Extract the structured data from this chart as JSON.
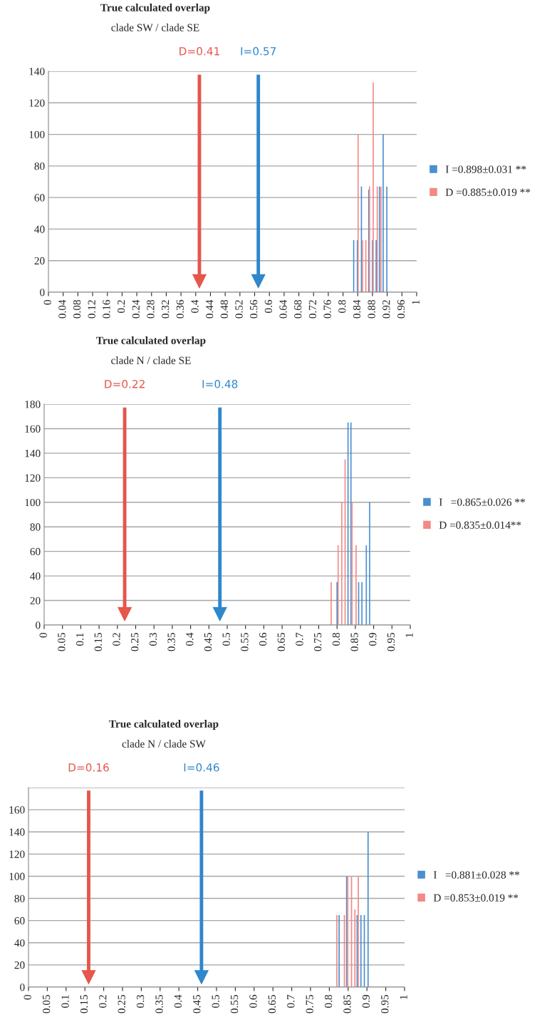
{
  "chart_data": [
    {
      "type": "bar",
      "title": "True calculated overlap",
      "subtitle": "clade SW / clade SE",
      "series": [
        {
          "name": "I =0.898±0.031 **",
          "color": "#4a8fd0",
          "x": [
            0.829,
            0.839,
            0.85,
            0.87,
            0.88,
            0.89,
            0.899,
            0.909,
            0.919
          ],
          "values": [
            33,
            33,
            67,
            65,
            33,
            33,
            67,
            100,
            67
          ]
        },
        {
          "name": "D =0.885±0.019 **",
          "color": "#f28a85",
          "x": [
            0.841,
            0.853,
            0.862,
            0.872,
            0.882,
            0.893,
            0.903
          ],
          "values": [
            100,
            33,
            33,
            67,
            133,
            67,
            67
          ]
        }
      ],
      "xlim": [
        0,
        1
      ],
      "xticks": [
        0,
        0.04,
        0.08,
        0.12,
        0.16,
        0.2,
        0.24,
        0.28,
        0.32,
        0.36,
        0.4,
        0.44,
        0.48,
        0.52,
        0.56,
        0.6,
        0.64,
        0.68,
        0.72,
        0.76,
        0.8,
        0.84,
        0.88,
        0.92,
        0.96,
        1
      ],
      "ylim": [
        0,
        140
      ],
      "yticks": [
        0,
        20,
        40,
        60,
        80,
        100,
        120,
        140
      ],
      "ref_lines": [
        {
          "axis": "x",
          "value": 0.41,
          "label": "D=0.41",
          "color": "#e5564b"
        },
        {
          "axis": "x",
          "value": 0.57,
          "label": "I=0.57",
          "color": "#2f87cc"
        }
      ],
      "grid": "y",
      "legend": "right"
    },
    {
      "type": "bar",
      "title": "True calculated overlap",
      "subtitle": "clade N / clade SE",
      "series": [
        {
          "name": "I   =0.865±0.026 **",
          "color": "#4a8fd0",
          "x": [
            0.8,
            0.83,
            0.838,
            0.859,
            0.868,
            0.88,
            0.889
          ],
          "values": [
            35,
            165,
            165,
            35,
            35,
            65,
            100
          ]
        },
        {
          "name": "D =0.835±0.014**",
          "color": "#f28a85",
          "x": [
            0.784,
            0.803,
            0.813,
            0.822,
            0.841,
            0.852
          ],
          "values": [
            35,
            65,
            100,
            135,
            100,
            65
          ]
        }
      ],
      "xlim": [
        0,
        1
      ],
      "xticks": [
        0,
        0.05,
        0.1,
        0.15,
        0.2,
        0.25,
        0.3,
        0.35,
        0.4,
        0.45,
        0.5,
        0.55,
        0.6,
        0.65,
        0.7,
        0.75,
        0.8,
        0.85,
        0.9,
        0.95,
        1
      ],
      "ylim": [
        0,
        180
      ],
      "yticks": [
        0,
        20,
        40,
        60,
        80,
        100,
        120,
        140,
        160,
        180
      ],
      "ref_lines": [
        {
          "axis": "x",
          "value": 0.22,
          "label": "D=0.22",
          "color": "#e5564b"
        },
        {
          "axis": "x",
          "value": 0.48,
          "label": "I=0.48",
          "color": "#2f87cc"
        }
      ],
      "grid": "y",
      "legend": "right"
    },
    {
      "type": "bar",
      "title": "True calculated overlap",
      "subtitle": "clade N / clade SW",
      "series": [
        {
          "name": "I   =0.881±0.028 **",
          "color": "#4a8fd0",
          "x": [
            0.826,
            0.846,
            0.874,
            0.884,
            0.893,
            0.903
          ],
          "values": [
            65,
            100,
            65,
            65,
            65,
            140
          ]
        },
        {
          "name": "D =0.853±0.019 **",
          "color": "#f28a85",
          "x": [
            0.82,
            0.84,
            0.849,
            0.859,
            0.868,
            0.877
          ],
          "values": [
            65,
            65,
            100,
            100,
            70,
            100
          ]
        }
      ],
      "xlim": [
        0,
        1
      ],
      "xticks": [
        0,
        0.05,
        0.1,
        0.15,
        0.2,
        0.25,
        0.3,
        0.35,
        0.4,
        0.45,
        0.5,
        0.55,
        0.6,
        0.65,
        0.7,
        0.75,
        0.8,
        0.85,
        0.9,
        0.95,
        1
      ],
      "ylim": [
        0,
        180
      ],
      "yticks": [
        0,
        20,
        40,
        60,
        80,
        100,
        120,
        140,
        160,
        {
          "value": 180,
          "label": null
        }
      ],
      "ref_lines": [
        {
          "axis": "x",
          "value": 0.16,
          "label": "D=0.16",
          "color": "#e5564b"
        },
        {
          "axis": "x",
          "value": 0.46,
          "label": "I=0.46",
          "color": "#2f87cc"
        }
      ],
      "grid": "y",
      "legend": "right"
    }
  ]
}
